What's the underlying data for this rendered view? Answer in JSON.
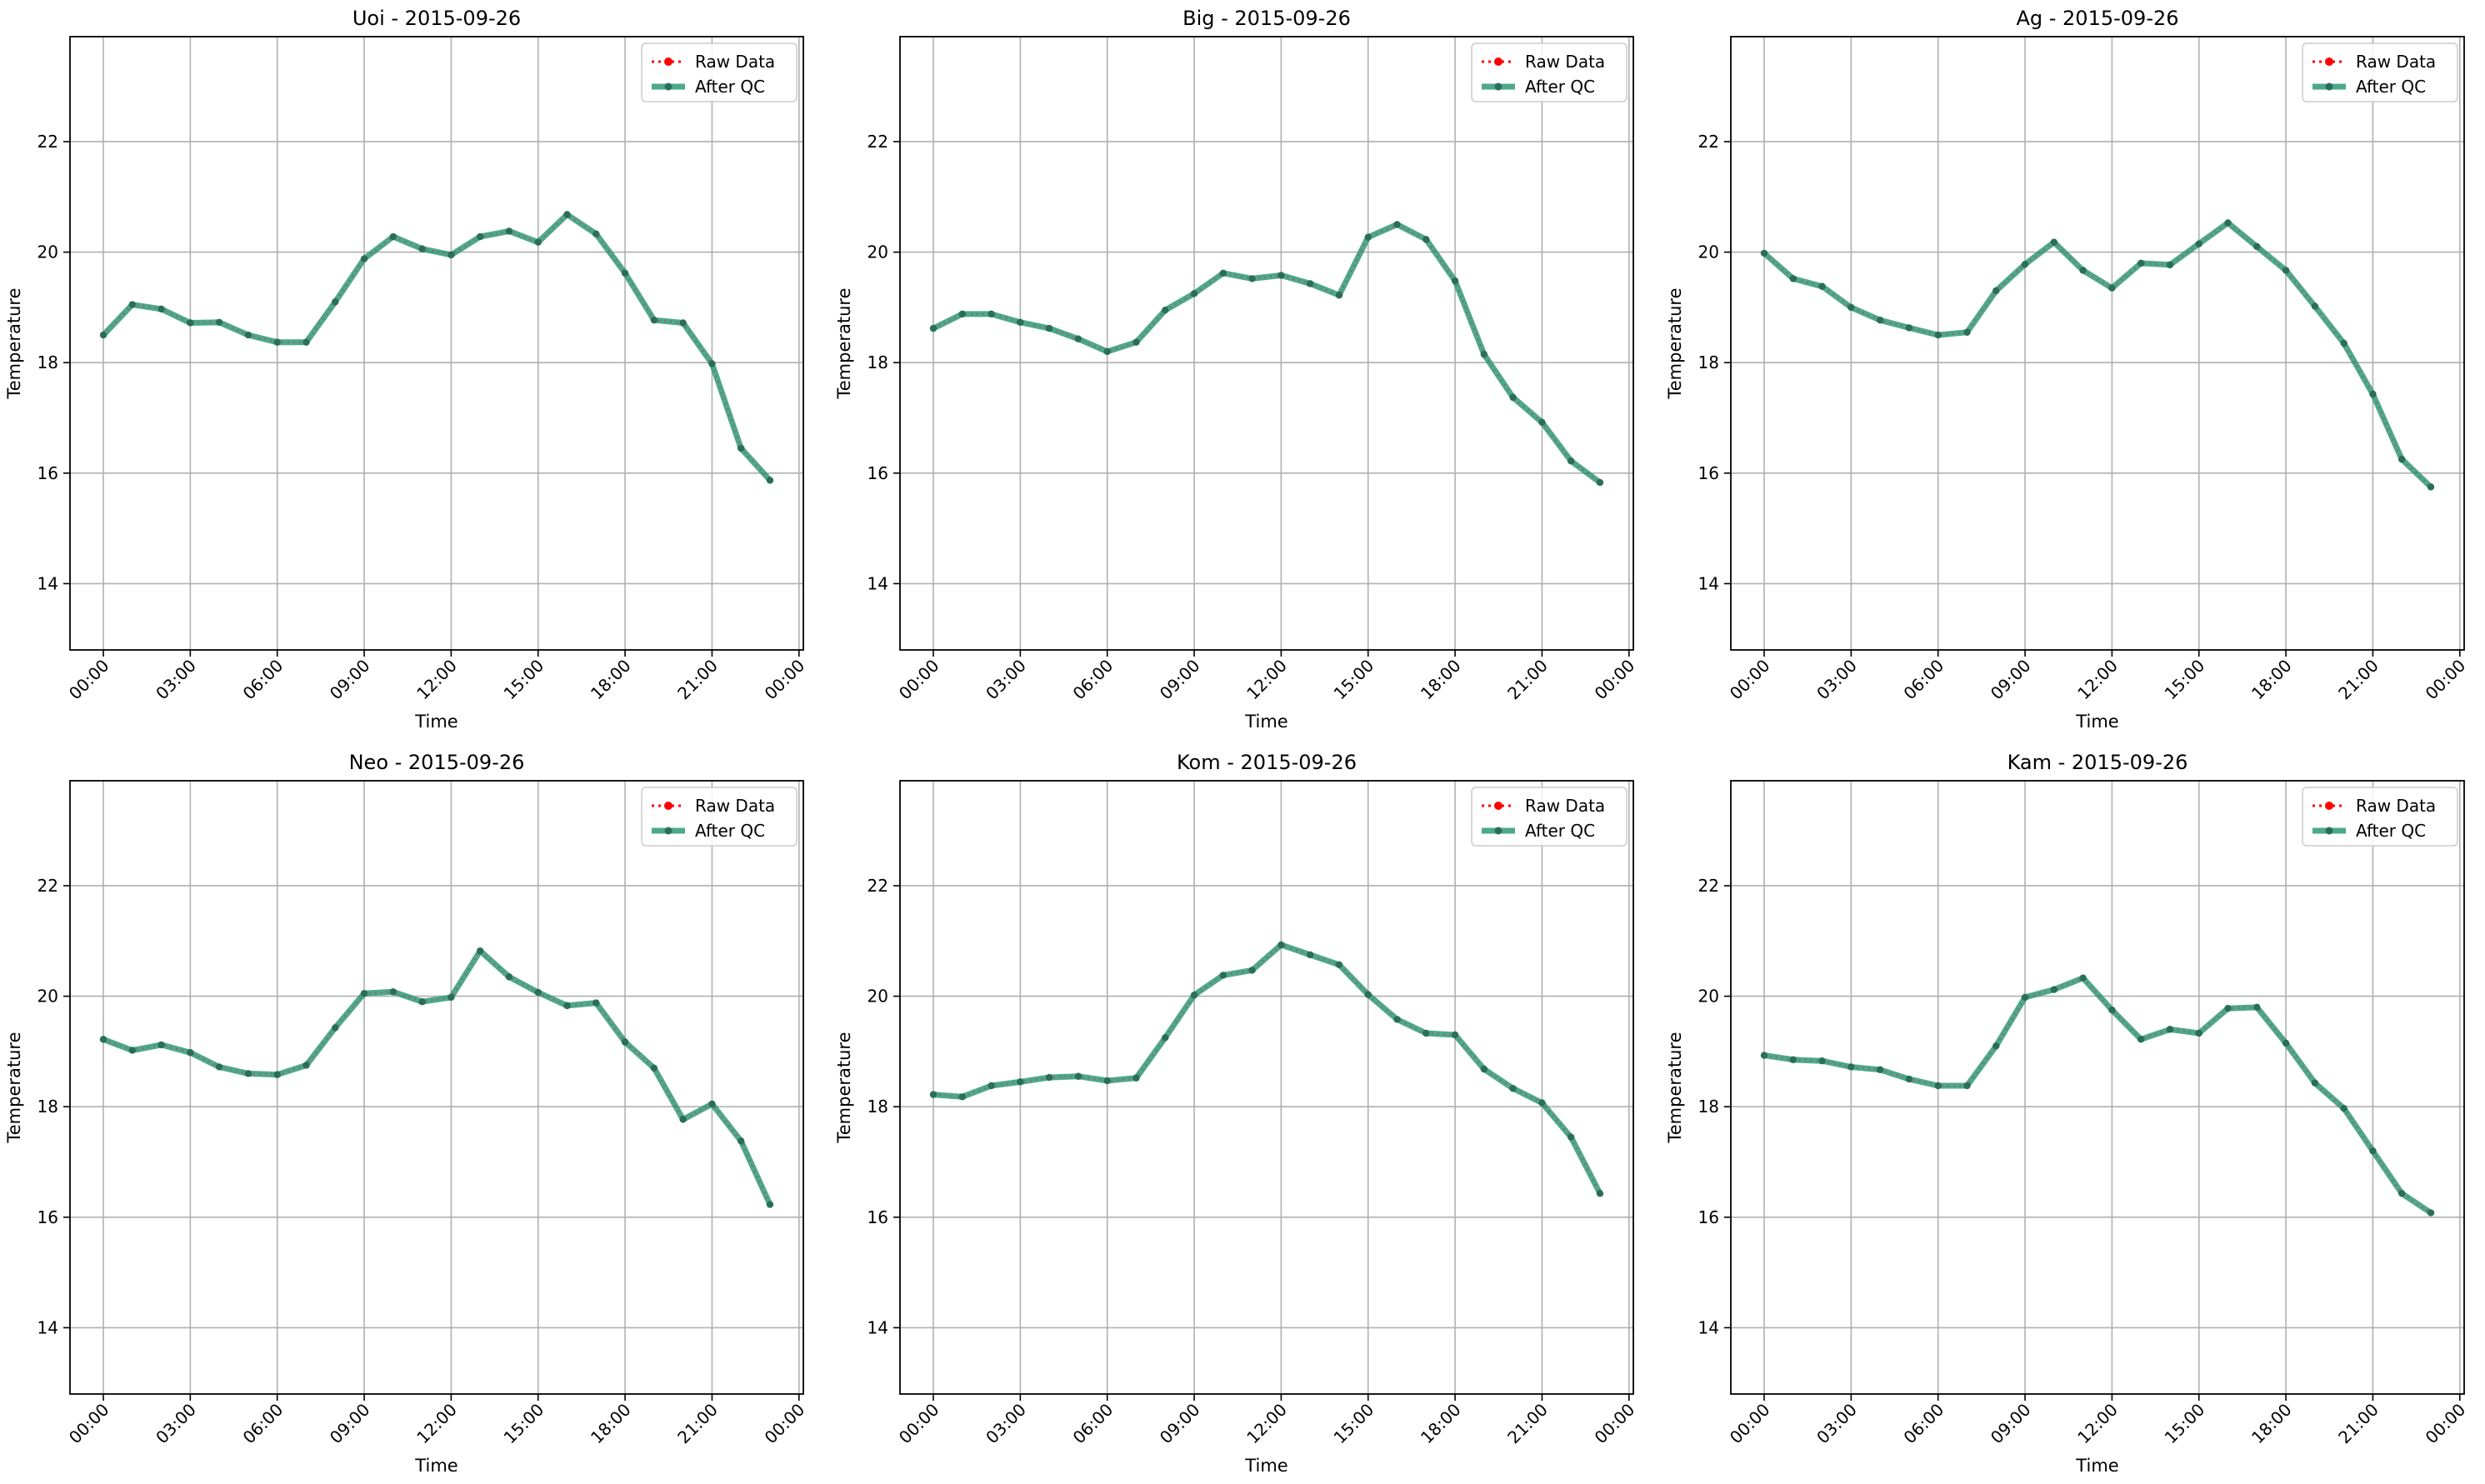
{
  "figure": {
    "background": "#ffffff",
    "raw_color": "#ff0000",
    "qc_color": "#2e9a78",
    "grid_color": "#b0b0b0",
    "legend": {
      "raw_label": "Raw Data",
      "qc_label": "After QC",
      "placement": "upper-right"
    }
  },
  "chart_data": [
    {
      "type": "line",
      "title": "Uoi - 2015-09-26",
      "xlabel": "Time",
      "ylabel": "Temperature",
      "xlim_hours": [
        -1.15,
        24.15
      ],
      "ylim": [
        12.8,
        23.9
      ],
      "x_tick_hours": [
        0,
        3,
        6,
        9,
        12,
        15,
        18,
        21,
        24
      ],
      "x_tick_labels": [
        "00:00",
        "03:00",
        "06:00",
        "09:00",
        "12:00",
        "15:00",
        "18:00",
        "21:00",
        "00:00"
      ],
      "y_ticks": [
        14,
        16,
        18,
        20,
        22
      ],
      "grid": true,
      "x_hours": [
        0,
        1,
        2,
        3,
        4,
        5,
        6,
        7,
        8,
        9,
        10,
        11,
        12,
        13,
        14,
        15,
        16,
        17,
        18,
        19,
        20,
        21,
        22,
        23
      ],
      "series": [
        {
          "name": "Raw Data",
          "values": [
            18.5,
            19.05,
            18.97,
            18.72,
            18.73,
            18.5,
            18.37,
            18.37,
            19.1,
            19.88,
            20.28,
            20.06,
            19.95,
            20.28,
            20.38,
            20.18,
            20.68,
            20.33,
            19.62,
            18.77,
            18.72,
            17.98,
            16.45,
            15.87
          ]
        },
        {
          "name": "After QC",
          "values": [
            18.5,
            19.05,
            18.97,
            18.72,
            18.73,
            18.5,
            18.37,
            18.37,
            19.1,
            19.88,
            20.28,
            20.06,
            19.95,
            20.28,
            20.38,
            20.18,
            20.68,
            20.33,
            19.62,
            18.77,
            18.72,
            17.98,
            16.45,
            15.87
          ]
        }
      ]
    },
    {
      "type": "line",
      "title": "Big - 2015-09-26",
      "xlabel": "Time",
      "ylabel": "Temperature",
      "xlim_hours": [
        -1.15,
        24.15
      ],
      "ylim": [
        12.8,
        23.9
      ],
      "x_tick_hours": [
        0,
        3,
        6,
        9,
        12,
        15,
        18,
        21,
        24
      ],
      "x_tick_labels": [
        "00:00",
        "03:00",
        "06:00",
        "09:00",
        "12:00",
        "15:00",
        "18:00",
        "21:00",
        "00:00"
      ],
      "y_ticks": [
        14,
        16,
        18,
        20,
        22
      ],
      "grid": true,
      "x_hours": [
        0,
        1,
        2,
        3,
        4,
        5,
        6,
        7,
        8,
        9,
        10,
        11,
        12,
        13,
        14,
        15,
        16,
        17,
        18,
        19,
        20,
        21,
        22,
        23
      ],
      "series": [
        {
          "name": "Raw Data",
          "values": [
            18.62,
            18.88,
            18.88,
            18.73,
            18.62,
            18.43,
            18.2,
            18.37,
            18.95,
            19.25,
            19.62,
            19.52,
            19.58,
            19.43,
            19.22,
            20.27,
            20.5,
            20.23,
            19.48,
            18.15,
            17.37,
            16.92,
            16.22,
            15.83
          ]
        },
        {
          "name": "After QC",
          "values": [
            18.62,
            18.88,
            18.88,
            18.73,
            18.62,
            18.43,
            18.2,
            18.37,
            18.95,
            19.25,
            19.62,
            19.52,
            19.58,
            19.43,
            19.22,
            20.27,
            20.5,
            20.23,
            19.48,
            18.15,
            17.37,
            16.92,
            16.22,
            15.83
          ]
        }
      ]
    },
    {
      "type": "line",
      "title": "Ag - 2015-09-26",
      "xlabel": "Time",
      "ylabel": "Temperature",
      "xlim_hours": [
        -1.15,
        24.15
      ],
      "ylim": [
        12.8,
        23.9
      ],
      "x_tick_hours": [
        0,
        3,
        6,
        9,
        12,
        15,
        18,
        21,
        24
      ],
      "x_tick_labels": [
        "00:00",
        "03:00",
        "06:00",
        "09:00",
        "12:00",
        "15:00",
        "18:00",
        "21:00",
        "00:00"
      ],
      "y_ticks": [
        14,
        16,
        18,
        20,
        22
      ],
      "grid": true,
      "x_hours": [
        0,
        1,
        2,
        3,
        4,
        5,
        6,
        7,
        8,
        9,
        10,
        11,
        12,
        13,
        14,
        15,
        16,
        17,
        18,
        19,
        20,
        21,
        22,
        23
      ],
      "series": [
        {
          "name": "Raw Data",
          "values": [
            19.98,
            19.52,
            19.38,
            19.0,
            18.77,
            18.63,
            18.5,
            18.55,
            19.3,
            19.78,
            20.18,
            19.67,
            19.35,
            19.8,
            19.77,
            20.15,
            20.53,
            20.1,
            19.67,
            19.02,
            18.35,
            17.43,
            16.25,
            15.75
          ]
        },
        {
          "name": "After QC",
          "values": [
            19.98,
            19.52,
            19.38,
            19.0,
            18.77,
            18.63,
            18.5,
            18.55,
            19.3,
            19.78,
            20.18,
            19.67,
            19.35,
            19.8,
            19.77,
            20.15,
            20.53,
            20.1,
            19.67,
            19.02,
            18.35,
            17.43,
            16.25,
            15.75
          ]
        }
      ]
    },
    {
      "type": "line",
      "title": "Neo - 2015-09-26",
      "xlabel": "Time",
      "ylabel": "Temperature",
      "xlim_hours": [
        -1.15,
        24.15
      ],
      "ylim": [
        12.8,
        23.9
      ],
      "x_tick_hours": [
        0,
        3,
        6,
        9,
        12,
        15,
        18,
        21,
        24
      ],
      "x_tick_labels": [
        "00:00",
        "03:00",
        "06:00",
        "09:00",
        "12:00",
        "15:00",
        "18:00",
        "21:00",
        "00:00"
      ],
      "y_ticks": [
        14,
        16,
        18,
        20,
        22
      ],
      "grid": true,
      "x_hours": [
        0,
        1,
        2,
        3,
        4,
        5,
        6,
        7,
        8,
        9,
        10,
        11,
        12,
        13,
        14,
        15,
        16,
        17,
        18,
        19,
        20,
        21,
        22,
        23
      ],
      "series": [
        {
          "name": "Raw Data",
          "values": [
            19.22,
            19.02,
            19.12,
            18.98,
            18.72,
            18.6,
            18.58,
            18.75,
            19.43,
            20.05,
            20.08,
            19.9,
            19.98,
            20.82,
            20.35,
            20.07,
            19.83,
            19.88,
            19.17,
            18.7,
            17.77,
            18.05,
            17.38,
            16.23
          ]
        },
        {
          "name": "After QC",
          "values": [
            19.22,
            19.02,
            19.12,
            18.98,
            18.72,
            18.6,
            18.58,
            18.75,
            19.43,
            20.05,
            20.08,
            19.9,
            19.98,
            20.82,
            20.35,
            20.07,
            19.83,
            19.88,
            19.17,
            18.7,
            17.77,
            18.05,
            17.38,
            16.23
          ]
        }
      ]
    },
    {
      "type": "line",
      "title": "Kom - 2015-09-26",
      "xlabel": "Time",
      "ylabel": "Temperature",
      "xlim_hours": [
        -1.15,
        24.15
      ],
      "ylim": [
        12.8,
        23.9
      ],
      "x_tick_hours": [
        0,
        3,
        6,
        9,
        12,
        15,
        18,
        21,
        24
      ],
      "x_tick_labels": [
        "00:00",
        "03:00",
        "06:00",
        "09:00",
        "12:00",
        "15:00",
        "18:00",
        "21:00",
        "00:00"
      ],
      "y_ticks": [
        14,
        16,
        18,
        20,
        22
      ],
      "grid": true,
      "x_hours": [
        0,
        1,
        2,
        3,
        4,
        5,
        6,
        7,
        8,
        9,
        10,
        11,
        12,
        13,
        14,
        15,
        16,
        17,
        18,
        19,
        20,
        21,
        22,
        23
      ],
      "series": [
        {
          "name": "Raw Data",
          "values": [
            18.22,
            18.18,
            18.38,
            18.45,
            18.53,
            18.55,
            18.47,
            18.52,
            19.25,
            20.02,
            20.38,
            20.47,
            20.93,
            20.75,
            20.57,
            20.03,
            19.58,
            19.33,
            19.3,
            18.68,
            18.33,
            18.07,
            17.45,
            16.43
          ]
        },
        {
          "name": "After QC",
          "values": [
            18.22,
            18.18,
            18.38,
            18.45,
            18.53,
            18.55,
            18.47,
            18.52,
            19.25,
            20.02,
            20.38,
            20.47,
            20.93,
            20.75,
            20.57,
            20.03,
            19.58,
            19.33,
            19.3,
            18.68,
            18.33,
            18.07,
            17.45,
            16.43
          ]
        }
      ]
    },
    {
      "type": "line",
      "title": "Kam - 2015-09-26",
      "xlabel": "Time",
      "ylabel": "Temperature",
      "xlim_hours": [
        -1.15,
        24.15
      ],
      "ylim": [
        12.8,
        23.9
      ],
      "x_tick_hours": [
        0,
        3,
        6,
        9,
        12,
        15,
        18,
        21,
        24
      ],
      "x_tick_labels": [
        "00:00",
        "03:00",
        "06:00",
        "09:00",
        "12:00",
        "15:00",
        "18:00",
        "21:00",
        "00:00"
      ],
      "y_ticks": [
        14,
        16,
        18,
        20,
        22
      ],
      "grid": true,
      "x_hours": [
        0,
        1,
        2,
        3,
        4,
        5,
        6,
        7,
        8,
        9,
        10,
        11,
        12,
        13,
        14,
        15,
        16,
        17,
        18,
        19,
        20,
        21,
        22,
        23
      ],
      "series": [
        {
          "name": "Raw Data",
          "values": [
            18.93,
            18.85,
            18.83,
            18.72,
            18.67,
            18.5,
            18.38,
            18.38,
            19.1,
            19.98,
            20.12,
            20.33,
            19.75,
            19.22,
            19.4,
            19.33,
            19.78,
            19.8,
            19.15,
            18.43,
            17.97,
            17.2,
            16.43,
            16.08
          ]
        },
        {
          "name": "After QC",
          "values": [
            18.93,
            18.85,
            18.83,
            18.72,
            18.67,
            18.5,
            18.38,
            18.38,
            19.1,
            19.98,
            20.12,
            20.33,
            19.75,
            19.22,
            19.4,
            19.33,
            19.78,
            19.8,
            19.15,
            18.43,
            17.97,
            17.2,
            16.43,
            16.08
          ]
        }
      ]
    }
  ]
}
